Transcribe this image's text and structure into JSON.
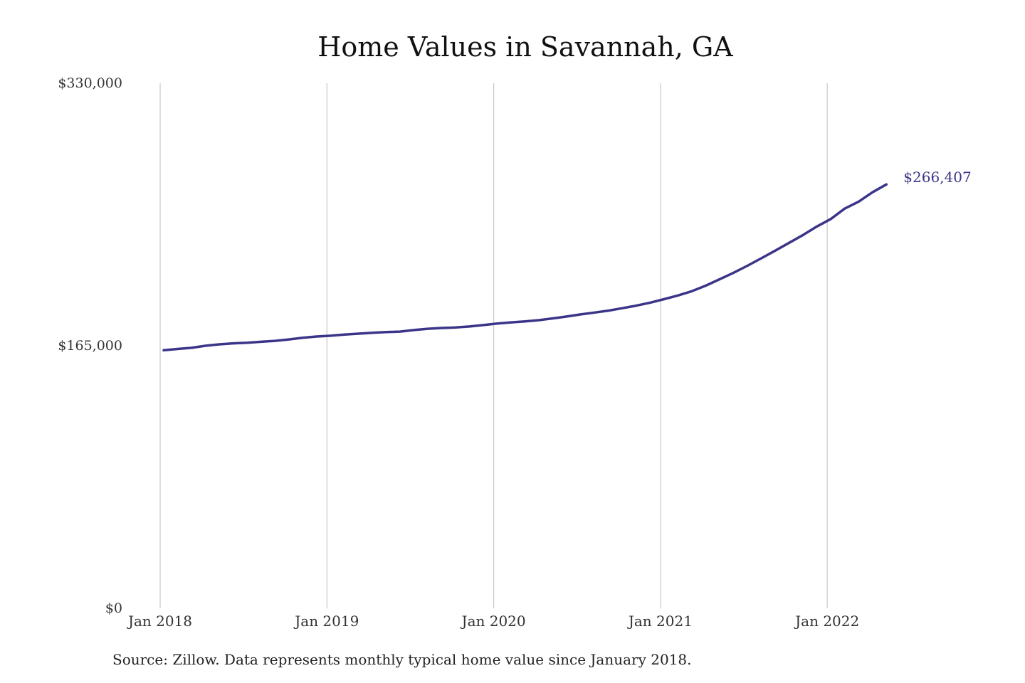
{
  "title": "Home Values in Savannah, GA",
  "source": "Source: Zillow. Data represents monthly typical home value since January 2018.",
  "colors": {
    "line": "#3b3589",
    "grid": "#c9c9c9",
    "text": "#333333"
  },
  "chart_data": {
    "type": "line",
    "title": "Home Values in Savannah, GA",
    "xlabel": "",
    "ylabel": "",
    "ylim": [
      0,
      330000
    ],
    "grid": "vertical",
    "y_ticks": [
      {
        "value": 0,
        "label": "$0"
      },
      {
        "value": 165000,
        "label": "$165,000"
      },
      {
        "value": 330000,
        "label": "$330,000"
      }
    ],
    "x_ticks": [
      {
        "date": "2018-01",
        "label": "Jan 2018"
      },
      {
        "date": "2019-01",
        "label": "Jan 2019"
      },
      {
        "date": "2020-01",
        "label": "Jan 2020"
      },
      {
        "date": "2021-01",
        "label": "Jan 2021"
      },
      {
        "date": "2022-01",
        "label": "Jan 2022"
      }
    ],
    "end_label": "$266,407",
    "series": [
      {
        "dates": [
          "2018-01",
          "2018-02",
          "2018-03",
          "2018-04",
          "2018-05",
          "2018-06",
          "2018-07",
          "2018-08",
          "2018-09",
          "2018-10",
          "2018-11",
          "2018-12",
          "2019-01",
          "2019-02",
          "2019-03",
          "2019-04",
          "2019-05",
          "2019-06",
          "2019-07",
          "2019-08",
          "2019-09",
          "2019-10",
          "2019-11",
          "2019-12",
          "2020-01",
          "2020-02",
          "2020-03",
          "2020-04",
          "2020-05",
          "2020-06",
          "2020-07",
          "2020-08",
          "2020-09",
          "2020-10",
          "2020-11",
          "2020-12",
          "2021-01",
          "2021-02",
          "2021-03",
          "2021-04",
          "2021-05",
          "2021-06",
          "2021-07",
          "2021-08",
          "2021-09",
          "2021-10",
          "2021-11",
          "2021-12",
          "2022-01",
          "2022-02",
          "2022-03",
          "2022-04",
          "2022-05"
        ],
        "values": [
          162200,
          163000,
          163700,
          165000,
          165900,
          166500,
          166900,
          167500,
          168100,
          169000,
          170000,
          170800,
          171300,
          172000,
          172600,
          173200,
          173600,
          173900,
          174900,
          175700,
          176200,
          176500,
          177100,
          178000,
          179000,
          179700,
          180300,
          181100,
          182200,
          183400,
          184700,
          185900,
          187100,
          188600,
          190200,
          192100,
          194300,
          196600,
          199300,
          202800,
          206800,
          210900,
          215300,
          220000,
          224800,
          229700,
          234600,
          240000,
          244700,
          251200,
          255600,
          261500,
          266407
        ]
      }
    ]
  }
}
